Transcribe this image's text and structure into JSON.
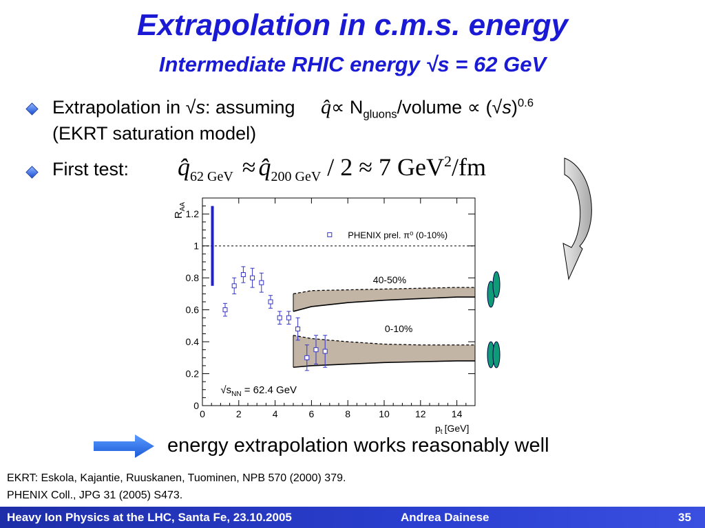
{
  "slide": {
    "title": "Extrapolation in c.m.s. energy",
    "subtitle": "Intermediate RHIC energy √s = 62 GeV",
    "bullet1": {
      "prefix": "Extrapolation in √",
      "s": "s",
      "assuming": ": assuming",
      "qhat": "q̂",
      "prop": "∝",
      "n": "N",
      "n_sub": "gluons",
      "volume": "/volume",
      "prop2": "∝",
      "open": "(√",
      "s2": "s",
      "close": ")",
      "exp": "0.6",
      "line2": "(EKRT saturation model)"
    },
    "bullet2": {
      "label": "First test:",
      "q1": "q̂",
      "q1_sub": "62 GeV",
      "approx1": "≈",
      "q2": "q̂",
      "q2_sub": "200 GeV",
      "rest": " / 2 ≈ 7 GeV",
      "sq": "2",
      "unit": "/fm"
    },
    "conclusion": "energy extrapolation works reasonably well",
    "refs": [
      "EKRT: Eskola, Kajantie, Ruuskanen, Tuominen, NPB 570 (2000) 379.",
      "PHENIX Coll., JPG 31 (2005) S473."
    ],
    "footer": {
      "left": "Heavy Ion Physics at the LHC, Santa Fe, 23.10.2005",
      "center": "Andrea Dainese",
      "page": "35"
    },
    "colors": {
      "title": "#1a1ad4",
      "band": "#c3b5a6",
      "data": "#3232c8",
      "bar": "#1f1fd0",
      "footer": "#2233b8",
      "ellipse": "#0f9a78"
    }
  },
  "chart_data": {
    "type": "scatter",
    "ylabel_main": "R",
    "ylabel_sub": "AA",
    "xlabel_main": "p",
    "xlabel_sub": "t",
    "xlabel_unit": "[GeV]",
    "xlim": [
      0,
      15
    ],
    "ylim": [
      0,
      1.3
    ],
    "xticks": [
      "0",
      "2",
      "4",
      "6",
      "8",
      "10",
      "12",
      "14"
    ],
    "yticks": [
      "0",
      "0.2",
      "0.4",
      "0.6",
      "0.8",
      "1",
      "1.2"
    ],
    "legend": "PHENIX prel. π⁰ (0-10%)",
    "energy_label": "√s",
    "energy_sub": "NN",
    "energy_value": " = 62.4 GeV",
    "band_labels": [
      "40-50%",
      "0-10%"
    ],
    "reference_line": 1,
    "normalization_bar": [
      0.75,
      1.25
    ],
    "series": [
      {
        "name": "PHENIX prel. π⁰ (0-10%)",
        "x": [
          1.25,
          1.75,
          2.25,
          2.75,
          3.25,
          3.75,
          4.25,
          4.75,
          5.25,
          5.75,
          6.25,
          6.75
        ],
        "y": [
          0.6,
          0.75,
          0.82,
          0.8,
          0.77,
          0.65,
          0.55,
          0.55,
          0.48,
          0.3,
          0.35,
          0.34
        ],
        "err": [
          0.04,
          0.05,
          0.05,
          0.06,
          0.06,
          0.04,
          0.04,
          0.04,
          0.07,
          0.08,
          0.09,
          0.1
        ]
      }
    ],
    "bands": [
      {
        "name": "40-50%",
        "x": [
          5,
          6,
          8,
          10,
          12,
          14,
          15
        ],
        "upper": [
          0.7,
          0.72,
          0.725,
          0.73,
          0.735,
          0.74,
          0.74
        ],
        "lower": [
          0.59,
          0.62,
          0.645,
          0.66,
          0.67,
          0.68,
          0.68
        ]
      },
      {
        "name": "0-10%",
        "x": [
          5,
          6,
          8,
          10,
          12,
          14,
          15
        ],
        "upper": [
          0.44,
          0.42,
          0.4,
          0.385,
          0.38,
          0.38,
          0.38
        ],
        "lower": [
          0.24,
          0.25,
          0.26,
          0.27,
          0.275,
          0.28,
          0.28
        ]
      }
    ],
    "dashed_curves": [
      {
        "name": "40-50%",
        "x": [
          5,
          6,
          8,
          10,
          12,
          14,
          15
        ],
        "y": [
          0.7,
          0.72,
          0.725,
          0.73,
          0.735,
          0.74,
          0.74
        ]
      },
      {
        "name": "0-10%",
        "x": [
          5,
          6,
          8,
          10,
          12,
          14,
          15
        ],
        "y": [
          0.44,
          0.42,
          0.4,
          0.385,
          0.38,
          0.38,
          0.38
        ]
      }
    ]
  }
}
